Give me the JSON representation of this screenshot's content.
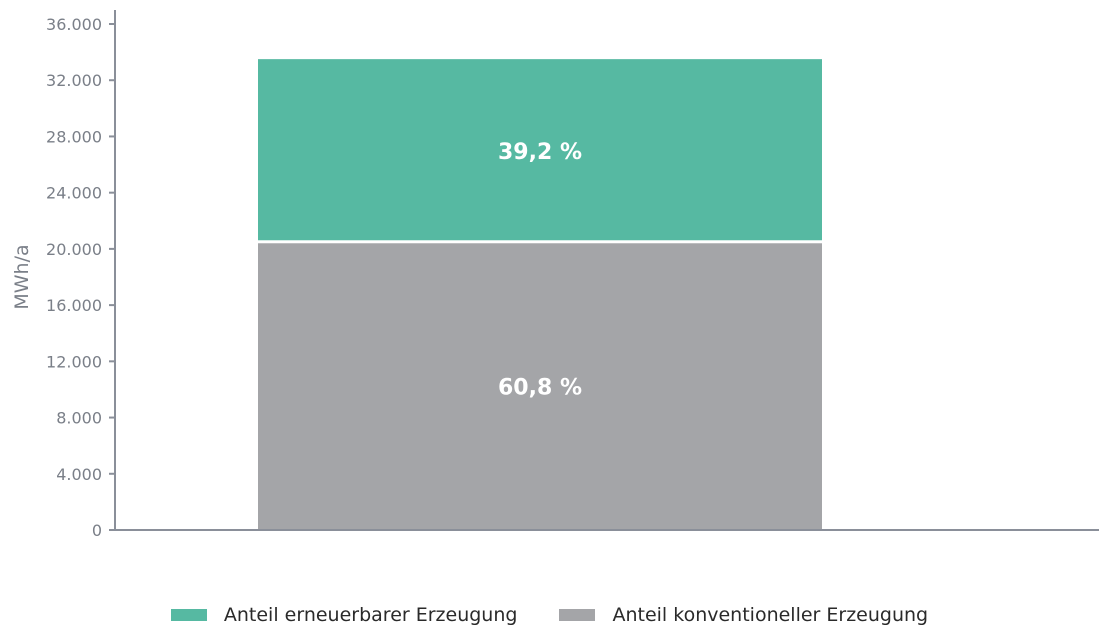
{
  "chart_data": {
    "type": "bar",
    "stacked": true,
    "categories": [
      ""
    ],
    "series": [
      {
        "name": "Anteil konventioneller Erzeugung",
        "values": [
          20400
        ],
        "label": "60,8 %",
        "color": "#a4a5a8"
      },
      {
        "name": "Anteil erneuerbarer Erzeugung",
        "values": [
          13100
        ],
        "label": "39,2 %",
        "color": "#56b9a2"
      }
    ],
    "title": "",
    "xlabel": "",
    "ylabel": "MWh/a",
    "ylim": [
      0,
      36000
    ],
    "yticks": [
      0,
      4000,
      8000,
      12000,
      16000,
      20000,
      24000,
      28000,
      32000,
      36000
    ],
    "ytick_labels": [
      "0",
      "4.000",
      "8.000",
      "12.000",
      "16.000",
      "20.000",
      "24.000",
      "28.000",
      "32.000",
      "36.000"
    ],
    "grid": false,
    "legend_position": "bottom",
    "legend_order": [
      1,
      0
    ]
  }
}
